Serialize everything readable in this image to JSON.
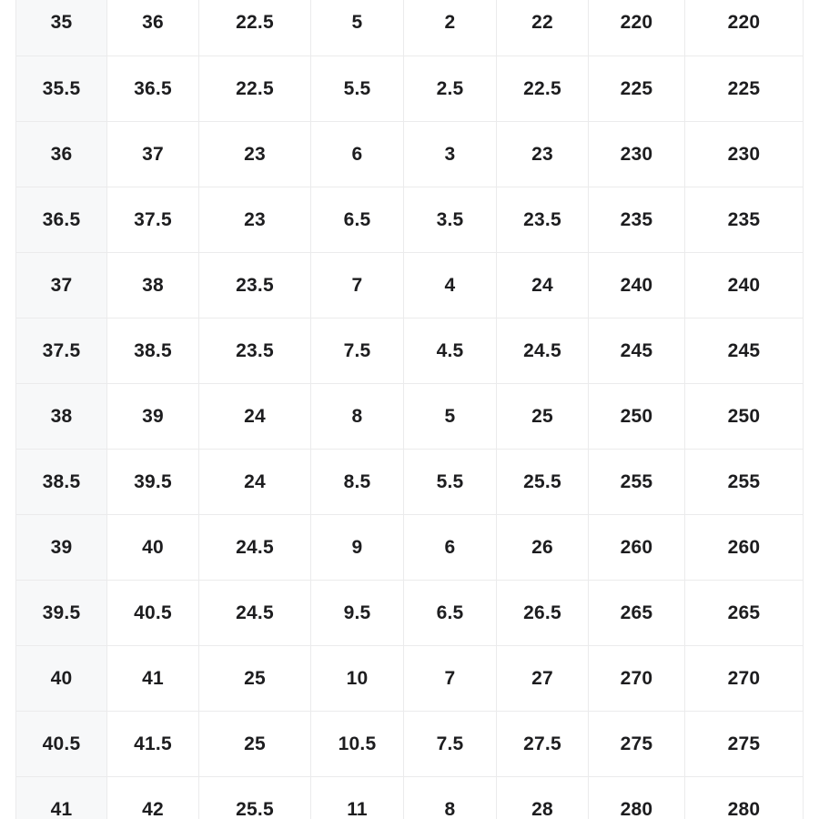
{
  "size_chart": {
    "rows": [
      [
        "35",
        "36",
        "22.5",
        "5",
        "2",
        "22",
        "220",
        "220"
      ],
      [
        "35.5",
        "36.5",
        "22.5",
        "5.5",
        "2.5",
        "22.5",
        "225",
        "225"
      ],
      [
        "36",
        "37",
        "23",
        "6",
        "3",
        "23",
        "230",
        "230"
      ],
      [
        "36.5",
        "37.5",
        "23",
        "6.5",
        "3.5",
        "23.5",
        "235",
        "235"
      ],
      [
        "37",
        "38",
        "23.5",
        "7",
        "4",
        "24",
        "240",
        "240"
      ],
      [
        "37.5",
        "38.5",
        "23.5",
        "7.5",
        "4.5",
        "24.5",
        "245",
        "245"
      ],
      [
        "38",
        "39",
        "24",
        "8",
        "5",
        "25",
        "250",
        "250"
      ],
      [
        "38.5",
        "39.5",
        "24",
        "8.5",
        "5.5",
        "25.5",
        "255",
        "255"
      ],
      [
        "39",
        "40",
        "24.5",
        "9",
        "6",
        "26",
        "260",
        "260"
      ],
      [
        "39.5",
        "40.5",
        "24.5",
        "9.5",
        "6.5",
        "26.5",
        "265",
        "265"
      ],
      [
        "40",
        "41",
        "25",
        "10",
        "7",
        "27",
        "270",
        "270"
      ],
      [
        "40.5",
        "41.5",
        "25",
        "10.5",
        "7.5",
        "27.5",
        "275",
        "275"
      ],
      [
        "41",
        "42",
        "25.5",
        "11",
        "8",
        "28",
        "280",
        "280"
      ]
    ],
    "colors": {
      "first_column_background": "#f7f8f9",
      "grid_border": "#ebebec",
      "text": "#1d1d1f",
      "page_background": "#ffffff"
    }
  }
}
